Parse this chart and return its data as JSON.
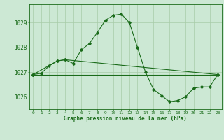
{
  "title": "Graphe pression niveau de la mer (hPa)",
  "background_color": "#cce8d4",
  "line_color": "#1a6b1a",
  "grid_color": "#a8cca8",
  "xlim": [
    -0.5,
    23.5
  ],
  "ylim": [
    1025.5,
    1029.75
  ],
  "yticks": [
    1026,
    1027,
    1028,
    1029
  ],
  "xticks": [
    0,
    1,
    2,
    3,
    4,
    5,
    6,
    7,
    8,
    9,
    10,
    11,
    12,
    13,
    14,
    15,
    16,
    17,
    18,
    19,
    20,
    21,
    22,
    23
  ],
  "series": [
    {
      "x": [
        0,
        1,
        2,
        3,
        4,
        5,
        6,
        7,
        8,
        9,
        10,
        11,
        12,
        13,
        14,
        15,
        16,
        17,
        18,
        19,
        20,
        21,
        22,
        23
      ],
      "y": [
        1026.9,
        1026.95,
        1027.25,
        1027.45,
        1027.5,
        1027.35,
        1027.9,
        1028.15,
        1028.6,
        1029.1,
        1029.3,
        1029.35,
        1029.0,
        1028.0,
        1027.0,
        1026.3,
        1026.05,
        1025.8,
        1025.85,
        1026.0,
        1026.35,
        1026.4,
        1026.4,
        1026.9
      ]
    },
    {
      "x": [
        0,
        3,
        4,
        23
      ],
      "y": [
        1026.9,
        1027.45,
        1027.5,
        1026.9
      ]
    },
    {
      "x": [
        0,
        23
      ],
      "y": [
        1026.9,
        1026.9
      ]
    }
  ]
}
